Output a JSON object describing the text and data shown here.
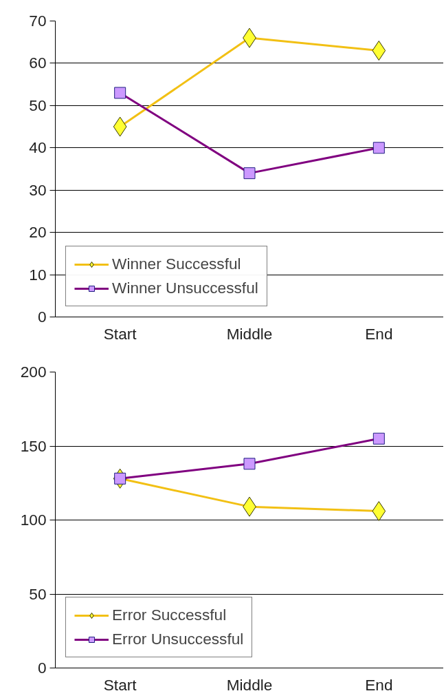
{
  "chart_data": [
    {
      "type": "line",
      "categories": [
        "Start",
        "Middle",
        "End"
      ],
      "ylim": [
        0,
        70
      ],
      "yticks": [
        0,
        10,
        20,
        30,
        40,
        50,
        60,
        70
      ],
      "grid": "y",
      "legend": "bottom left",
      "series": [
        {
          "name": "Winner Successful",
          "color": "#f2c014",
          "marker": "diamond",
          "values": [
            45,
            66,
            63
          ]
        },
        {
          "name": "Winner Unsuccessful",
          "color": "#800080",
          "marker": "square",
          "values": [
            53,
            34,
            40
          ]
        }
      ]
    },
    {
      "type": "line",
      "categories": [
        "Start",
        "Middle",
        "End"
      ],
      "ylim": [
        0,
        200
      ],
      "yticks": [
        0,
        50,
        100,
        150,
        200
      ],
      "grid": "y",
      "legend": "bottom left",
      "series": [
        {
          "name": "Error Successful",
          "color": "#f2c014",
          "marker": "diamond",
          "values": [
            128,
            109,
            106
          ]
        },
        {
          "name": "Error Unsuccessful",
          "color": "#800080",
          "marker": "square",
          "values": [
            128,
            138,
            155
          ]
        }
      ]
    }
  ]
}
